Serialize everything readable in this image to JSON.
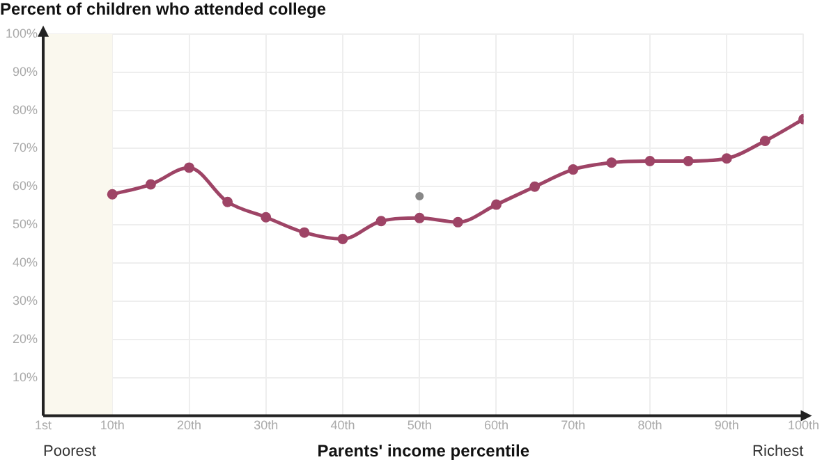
{
  "chart_data": {
    "type": "line",
    "title": "Percent of children who attended college",
    "xlabel": "Parents' income percentile",
    "x": [
      10,
      15,
      20,
      25,
      30,
      35,
      40,
      45,
      50,
      55,
      60,
      65,
      70,
      75,
      80,
      85,
      90,
      95,
      100
    ],
    "series": [
      {
        "color": "#9e4466",
        "values": [
          58,
          60.6,
          65,
          56,
          52,
          48,
          46.3,
          51,
          51.8,
          50.7,
          55.3,
          60,
          64.5,
          66.3,
          66.7,
          66.7,
          67.4,
          72,
          77.7
        ]
      },
      {
        "type": "scatter",
        "color": "#888888",
        "x": [
          50
        ],
        "values": [
          57.5
        ]
      }
    ],
    "xlim": [
      1,
      100
    ],
    "xticks": [
      {
        "value": 1,
        "label": "1st"
      },
      {
        "value": 10,
        "label": "10th"
      },
      {
        "value": 20,
        "label": "20th"
      },
      {
        "value": 30,
        "label": "30th"
      },
      {
        "value": 40,
        "label": "40th"
      },
      {
        "value": 50,
        "label": "50th"
      },
      {
        "value": 60,
        "label": "60th"
      },
      {
        "value": 70,
        "label": "70th"
      },
      {
        "value": 80,
        "label": "80th"
      },
      {
        "value": 90,
        "label": "90th"
      },
      {
        "value": 100,
        "label": "100th"
      }
    ],
    "ylim": [
      0,
      100
    ],
    "yticks": [
      {
        "value": 10,
        "label": "10%"
      },
      {
        "value": 20,
        "label": "20%"
      },
      {
        "value": 30,
        "label": "30%"
      },
      {
        "value": 40,
        "label": "40%"
      },
      {
        "value": 50,
        "label": "50%"
      },
      {
        "value": 60,
        "label": "60%"
      },
      {
        "value": 70,
        "label": "70%"
      },
      {
        "value": 80,
        "label": "80%"
      },
      {
        "value": 90,
        "label": "90%"
      },
      {
        "value": 100,
        "label": "100%"
      }
    ],
    "bands": [
      {
        "axis": "x",
        "from": 1,
        "to": 10,
        "color": "#faf8ee"
      }
    ],
    "annotations": [
      "Poorest",
      "Richest"
    ],
    "grid": true,
    "marker": "circle",
    "line_style": "solid",
    "legend": false
  }
}
